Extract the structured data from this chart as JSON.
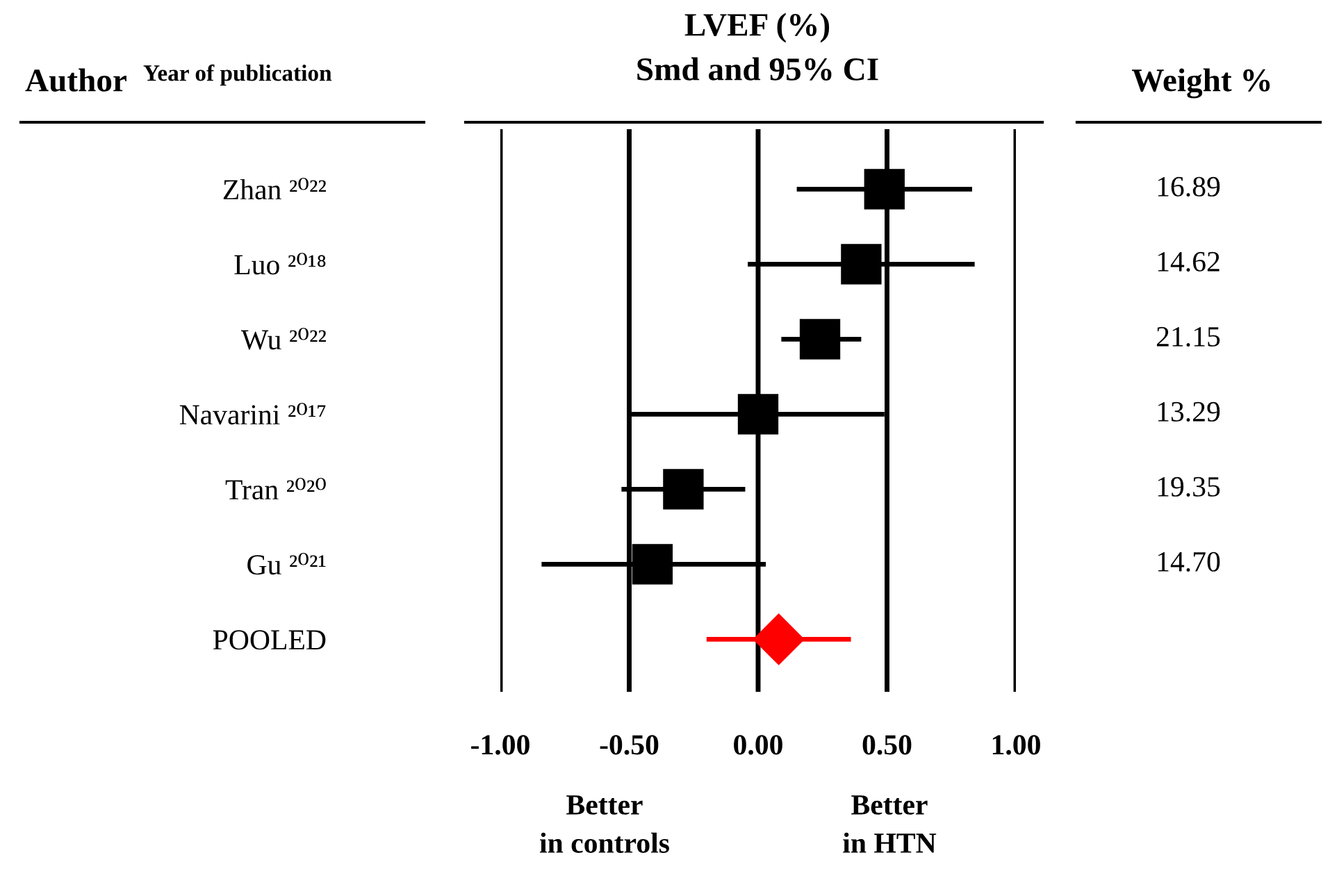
{
  "chart_data": {
    "type": "scatter",
    "orientation": "horizontal",
    "title": "LVEF (%)",
    "subtitle": "Smd and 95% CI",
    "categories": [
      "Zhan ²⁰²²",
      "Luo ²⁰¹⁸",
      "Wu ²⁰²²",
      "Navarini ²⁰¹⁷",
      "Tran ²⁰²⁰",
      "Gu ²⁰²¹",
      "POOLED"
    ],
    "series": [
      {
        "color": "#000000",
        "marker": "square",
        "values": [
          0.49,
          0.4,
          0.24,
          0.0,
          -0.29,
          -0.41,
          null
        ],
        "errors": [
          [
            0.15,
            0.83
          ],
          [
            -0.04,
            0.84
          ],
          [
            0.09,
            0.4
          ],
          [
            -0.5,
            0.49
          ],
          [
            -0.53,
            -0.05
          ],
          [
            -0.84,
            0.03
          ],
          null
        ]
      },
      {
        "color": "#ff0000",
        "marker": "diamond",
        "values": [
          null,
          null,
          null,
          null,
          null,
          null,
          0.08
        ],
        "errors": [
          null,
          null,
          null,
          null,
          null,
          null,
          [
            -0.2,
            0.36
          ]
        ]
      }
    ],
    "xlim": [
      -1.0,
      1.0
    ],
    "xticks": [
      {
        "value": -1.0,
        "label": "-1.00"
      },
      {
        "value": -0.5,
        "label": "-0.50"
      },
      {
        "value": 0.0,
        "label": "0.00"
      },
      {
        "value": 0.5,
        "label": "0.50"
      },
      {
        "value": 1.0,
        "label": "1.00"
      }
    ],
    "grid": "x",
    "annotations": [
      "Author",
      "Year of publication",
      "Weight %",
      "Better\nin controls",
      "Better\nin HTN",
      "16.89",
      "14.62",
      "21.15",
      "13.29",
      "19.35",
      "14.70"
    ]
  }
}
